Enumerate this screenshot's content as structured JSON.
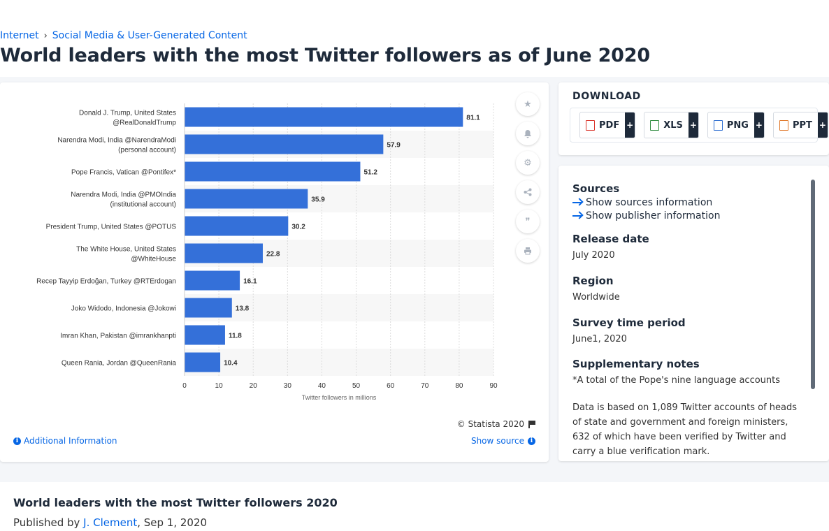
{
  "breadcrumb": {
    "item1": "Internet",
    "sep": "›",
    "item2": "Social Media & User-Generated Content"
  },
  "page_title": "World leaders with the most Twitter followers as of June 2020",
  "chart_data": {
    "type": "bar",
    "orientation": "horizontal",
    "categories": [
      [
        "Donald J. Trump, United States",
        "@RealDonaldTrump"
      ],
      [
        "Narendra Modi, India @NarendraModi",
        "(personal account)"
      ],
      [
        "Pope Francis, Vatican @Pontifex*"
      ],
      [
        "Narendra Modi, India @PMOIndia",
        "(institutional account)"
      ],
      [
        "President Trump, United States @POTUS"
      ],
      [
        "The White House, United States",
        "@WhiteHouse"
      ],
      [
        "Recep Tayyip Erdoğan, Turkey @RTErdogan"
      ],
      [
        "Joko Widodo, Indonesia @Jokowi"
      ],
      [
        "Imran Khan, Pakistan @imrankhanpti"
      ],
      [
        "Queen Rania, Jordan @QueenRania"
      ]
    ],
    "values": [
      81.1,
      57.9,
      51.2,
      35.9,
      30.2,
      22.8,
      16.1,
      13.8,
      11.8,
      10.4
    ],
    "xlabel": "Twitter followers in millions",
    "xlim": [
      0,
      90
    ],
    "xticks": [
      0,
      10,
      20,
      30,
      40,
      50,
      60,
      70,
      80,
      90
    ],
    "bar_color": "#3470d9",
    "grid": true
  },
  "chart_footer": {
    "copyright": "© Statista 2020",
    "additional_info": "Additional Information",
    "show_source": "Show source"
  },
  "tools": [
    "star-icon",
    "bell-icon",
    "gear-icon",
    "share-icon",
    "quote-icon",
    "print-icon"
  ],
  "download": {
    "title": "DOWNLOAD",
    "formats": [
      {
        "label": "PDF",
        "color": "#d9342b"
      },
      {
        "label": "XLS",
        "color": "#2e8b3e"
      },
      {
        "label": "PNG",
        "color": "#2f6fd1"
      },
      {
        "label": "PPT",
        "color": "#e0792a"
      }
    ],
    "plus": "+"
  },
  "info": {
    "sources_h": "Sources",
    "sources_link": "Show sources information",
    "publisher_link": "Show publisher information",
    "release_h": "Release date",
    "release_v": "July 2020",
    "region_h": "Region",
    "region_v": "Worldwide",
    "survey_h": "Survey time period",
    "survey_v": "June1, 2020",
    "supp_h": "Supplementary notes",
    "supp_v1": "*A total of the Pope's nine language accounts",
    "supp_v2": "Data is based on 1,089 Twitter accounts of heads of state and government and foreign ministers, 632 of which have been verified by Twitter and carry a blue verification mark."
  },
  "bottom": {
    "title": "World leaders with the most Twitter followers 2020",
    "published_by": "Published by ",
    "author": "J. Clement",
    "date": ", Sep 1, 2020"
  }
}
